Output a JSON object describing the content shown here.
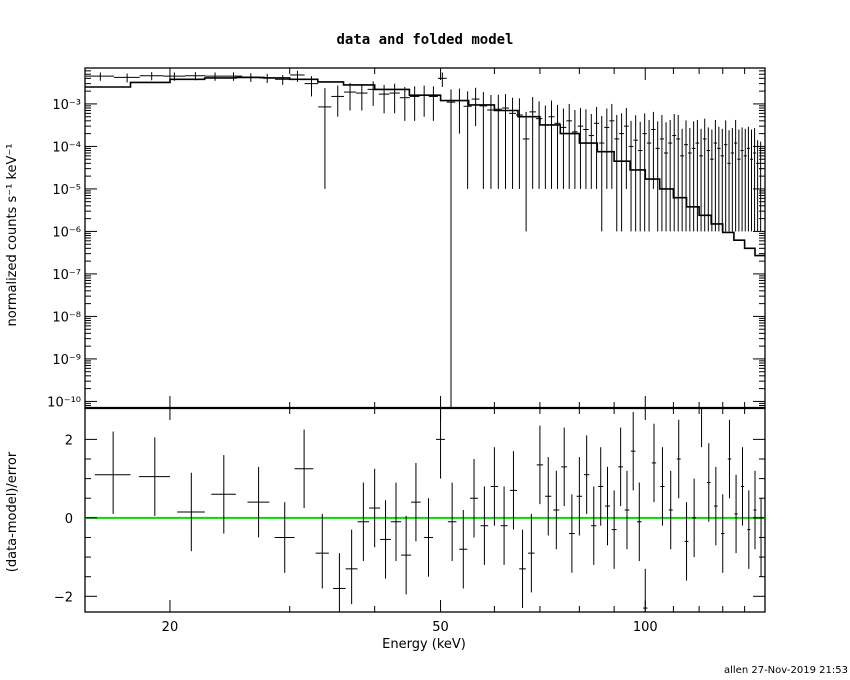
{
  "chart_data": [
    {
      "type": "scatter",
      "panel": "top",
      "title": "data and folded model",
      "xlabel": "",
      "ylabel": "normalized counts s⁻¹ keV⁻¹",
      "xscale": "log",
      "yscale": "log",
      "xlim": [
        15,
        150
      ],
      "ylim": [
        7e-11,
        0.007
      ],
      "xticks": [
        20,
        50,
        100
      ],
      "yticks": [
        "10⁻³",
        "10⁻⁴",
        "10⁻⁵",
        "10⁻⁶",
        "10⁻⁷",
        "10⁻⁸",
        "10⁻⁹",
        "10⁻¹⁰"
      ],
      "series": [
        {
          "role": "data",
          "color": "#000000",
          "x": [
            15.8,
            17.3,
            18.8,
            20.3,
            21.8,
            23.3,
            24.8,
            26.3,
            27.8,
            29.3,
            30.8,
            32.3,
            33.8,
            35.3,
            36.8,
            38.3,
            39.8,
            41.3,
            42.8,
            44.3,
            45.8,
            47.3,
            48.8,
            50.3,
            51.8,
            53.3,
            54.8,
            56.3,
            57.8,
            59.3,
            60.8,
            62.3,
            63.8,
            65.3,
            66.8,
            68.3,
            69.8,
            71.3,
            72.8,
            74.3,
            75.8,
            77.3,
            78.8,
            80.3,
            81.8,
            83.3,
            84.8,
            86.3,
            87.8,
            89.3,
            90.8,
            92.3,
            93.8,
            95.3,
            96.8,
            98.3,
            99.8,
            101.3,
            102.8,
            104.3,
            105.8,
            107.3,
            108.8,
            110.3,
            111.8,
            113.3,
            114.8,
            116.3,
            117.8,
            119.3,
            120.8,
            122.3,
            123.8,
            125.3,
            126.8,
            128.3,
            129.8,
            131.3,
            132.8,
            134.3,
            135.8,
            137.3,
            138.8,
            140.3,
            141.8,
            143.3,
            144.8,
            146.3,
            147.8
          ],
          "xerr": [
            0.75,
            0.75,
            0.75,
            0.75,
            0.75,
            0.75,
            0.75,
            0.75,
            0.75,
            0.75,
            0.75,
            0.75,
            0.75,
            0.75,
            0.75,
            0.75,
            0.75,
            0.75,
            0.75,
            0.75,
            0.75,
            0.75,
            0.75,
            0.75,
            0.75,
            0.75,
            0.75,
            0.75,
            0.75,
            0.75,
            0.75,
            0.75,
            0.75,
            0.75,
            0.75,
            0.75,
            0.75,
            0.75,
            0.75,
            0.75,
            0.75,
            0.75,
            0.75,
            0.75,
            0.75,
            0.75,
            0.75,
            0.75,
            0.75,
            0.75,
            0.75,
            0.75,
            0.75,
            0.75,
            0.75,
            0.75,
            0.75,
            0.75,
            0.75,
            0.75,
            0.75,
            0.75,
            0.75,
            0.75,
            0.75,
            0.75,
            0.75,
            0.75,
            0.75,
            0.75,
            0.75,
            0.75,
            0.75,
            0.75,
            0.75,
            0.75,
            0.75,
            0.75,
            0.75,
            0.75,
            0.75,
            0.75,
            0.75,
            0.75,
            0.75,
            0.75,
            0.75,
            0.75,
            0.75
          ],
          "y": [
            0.0045,
            0.0042,
            0.0046,
            0.0045,
            0.0046,
            0.0045,
            0.0045,
            0.0043,
            0.0041,
            0.0038,
            0.0048,
            0.003,
            0.00085,
            0.0015,
            0.0019,
            0.0018,
            0.0022,
            0.0017,
            0.0018,
            0.0014,
            0.0015,
            0.0016,
            0.0015,
            0.004,
            0.0011,
            0.0012,
            0.00088,
            0.0013,
            0.0009,
            0.00072,
            0.00075,
            0.0008,
            0.0006,
            0.00055,
            0.00015,
            0.00065,
            0.00045,
            0.00032,
            0.0005,
            0.00035,
            0.00028,
            0.0004,
            0.00022,
            0.0003,
            0.00025,
            0.00018,
            0.00035,
            0.00012,
            0.00028,
            0.0004,
            0.00015,
            0.0002,
            0.0003,
            0.0001,
            0.00014,
            8e-05,
            0.0002,
            0.00012,
            0.00025,
            9e-05,
            0.00015,
            7e-05,
            0.00012,
            0.00018,
            0.00015,
            6e-05,
            0.00011,
            7e-05,
            9e-05,
            0.00012,
            6e-05,
            0.00015,
            8e-05,
            5e-05,
            0.00012,
            9e-05,
            6e-05,
            0.00011,
            4e-05,
            7e-05,
            0.00012,
            5e-05,
            8e-05,
            6e-05,
            9e-05,
            5e-05,
            7e-05,
            4e-05,
            3e-05
          ],
          "yerr_low": [
            0.001,
            0.001,
            0.001,
            0.001,
            0.001,
            0.001,
            0.001,
            0.001,
            0.001,
            0.001,
            0.0015,
            0.0015,
            0.00084,
            0.001,
            0.0012,
            0.0011,
            0.0013,
            0.0011,
            0.0012,
            0.001,
            0.0011,
            0.0011,
            0.0011,
            0.0015,
            0.0011,
            0.001,
            0.00087,
            0.001,
            0.00089,
            0.00071,
            0.00074,
            0.00079,
            0.00059,
            0.00054,
            0.000149,
            0.00064,
            0.00044,
            0.00031,
            0.00049,
            0.00034,
            0.00027,
            0.00039,
            0.00021,
            0.00029,
            0.00024,
            0.00017,
            0.00034,
            0.000119,
            0.00027,
            0.00039,
            0.000149,
            0.000199,
            0.00029,
            9.9e-05,
            0.000139,
            7.9e-05,
            0.000199,
            0.000119,
            0.00024,
            8.9e-05,
            0.000149,
            6.9e-05,
            0.000119,
            0.000179,
            0.000149,
            5.9e-05,
            0.000109,
            6.9e-05,
            8.9e-05,
            0.000119,
            5.9e-05,
            0.000149,
            7.9e-05,
            4.9e-05,
            0.000119,
            8.9e-05,
            5.9e-05,
            0.000109,
            3.9e-05,
            6.9e-05,
            0.000119,
            4.9e-05,
            7.9e-05,
            5.9e-05,
            8.9e-05,
            4.9e-05,
            6.9e-05,
            3.9e-05,
            2.9e-05
          ],
          "yerr_high": [
            0.001,
            0.001,
            0.001,
            0.001,
            0.001,
            0.001,
            0.001,
            0.001,
            0.001,
            0.001,
            0.0012,
            0.0015,
            0.0015,
            0.0012,
            0.0012,
            0.0011,
            0.0012,
            0.0011,
            0.0012,
            0.0011,
            0.0011,
            0.0011,
            0.0011,
            0.0015,
            0.0011,
            0.0011,
            0.0011,
            0.0011,
            0.001,
            0.0009,
            0.0009,
            0.0009,
            0.0008,
            0.0008,
            0.0005,
            0.0008,
            0.0007,
            0.0006,
            0.0007,
            0.0006,
            0.0005,
            0.0006,
            0.0005,
            0.0005,
            0.0005,
            0.0004,
            0.0005,
            0.0004,
            0.0005,
            0.0006,
            0.0004,
            0.0004,
            0.0005,
            0.0003,
            0.0004,
            0.0003,
            0.0004,
            0.0003,
            0.0004,
            0.0003,
            0.0004,
            0.0003,
            0.0003,
            0.0004,
            0.0004,
            0.0002,
            0.0003,
            0.0002,
            0.0003,
            0.0003,
            0.0002,
            0.0003,
            0.0002,
            0.0002,
            0.0003,
            0.0002,
            0.0002,
            0.0003,
            0.0002,
            0.0002,
            0.0003,
            0.0002,
            0.0002,
            0.0002,
            0.0002,
            0.0002,
            0.0002,
            0.0001,
            0.0001
          ]
        },
        {
          "role": "model",
          "color": "#000000",
          "x": [
            15,
            17.5,
            20,
            22.5,
            25,
            27.5,
            30,
            33,
            36,
            40,
            45,
            50,
            55,
            60,
            65,
            70,
            75,
            80,
            85,
            90,
            95,
            100,
            105,
            110,
            115,
            120,
            125,
            130,
            135,
            140,
            145,
            150
          ],
          "y": [
            0.0025,
            0.0032,
            0.0038,
            0.0041,
            0.0042,
            0.0041,
            0.0038,
            0.0033,
            0.0028,
            0.0022,
            0.0016,
            0.0012,
            0.00095,
            0.0007,
            0.0005,
            0.00032,
            0.0002,
            0.00012,
            7.5e-05,
            4.5e-05,
            2.8e-05,
            1.7e-05,
            1e-05,
            6.2e-06,
            3.8e-06,
            2.4e-06,
            1.5e-06,
            9.5e-07,
            6.2e-07,
            4e-07,
            2.7e-07,
            1.8e-07
          ]
        }
      ]
    },
    {
      "type": "scatter",
      "panel": "bottom",
      "xlabel": "Energy (keV)",
      "ylabel": "(data-model)/error",
      "xscale": "log",
      "xlim": [
        15,
        150
      ],
      "ylim": [
        -2.4,
        2.8
      ],
      "xticks": [
        20,
        50,
        100
      ],
      "yticks": [
        2,
        0,
        -2
      ],
      "zero_line": {
        "y": 0,
        "color": "#00dd00"
      },
      "series": [
        {
          "role": "residuals",
          "color": "#000000",
          "points": [
            [
              16.5,
              1.1,
              1.1,
              1.0
            ],
            [
              19,
              1.05,
              1.0,
              1.0
            ],
            [
              21.5,
              0.15,
              1.0,
              1.0
            ],
            [
              24,
              0.6,
              1.0,
              1.0
            ],
            [
              27,
              0.4,
              0.9,
              0.9
            ],
            [
              29.5,
              -0.5,
              0.9,
              0.9
            ],
            [
              31.5,
              1.25,
              1.0,
              1.0
            ],
            [
              33.5,
              -0.9,
              1.0,
              0.9
            ],
            [
              35.5,
              -1.8,
              0.9,
              0.9
            ],
            [
              37,
              -1.3,
              1.0,
              0.9
            ],
            [
              38.5,
              -0.1,
              1.0,
              1.0
            ],
            [
              40,
              0.25,
              1.0,
              1.0
            ],
            [
              41.5,
              -0.55,
              1.0,
              1.0
            ],
            [
              43,
              -0.1,
              1.0,
              1.0
            ],
            [
              44.5,
              -0.95,
              1.0,
              1.0
            ],
            [
              46,
              0.4,
              1.0,
              1.0
            ],
            [
              48,
              -0.5,
              1.0,
              1.0
            ],
            [
              50,
              2.0,
              1.0,
              1.0
            ],
            [
              52,
              -0.1,
              1.0,
              1.0
            ],
            [
              54,
              -0.8,
              1.0,
              1.0
            ],
            [
              56,
              0.5,
              1.0,
              1.0
            ],
            [
              58,
              -0.2,
              1.0,
              1.0
            ],
            [
              60,
              0.8,
              1.0,
              1.0
            ],
            [
              62,
              -0.2,
              1.0,
              1.0
            ],
            [
              64,
              0.7,
              1.0,
              1.0
            ],
            [
              66,
              -1.3,
              1.0,
              1.0
            ],
            [
              68,
              -0.9,
              1.0,
              1.0
            ],
            [
              70,
              1.35,
              1.0,
              1.0
            ],
            [
              72,
              0.55,
              1.0,
              1.0
            ],
            [
              74,
              0.2,
              1.0,
              1.0
            ],
            [
              76,
              1.3,
              1.0,
              1.0
            ],
            [
              78,
              -0.4,
              1.0,
              1.0
            ],
            [
              80,
              0.55,
              1.0,
              1.0
            ],
            [
              82,
              1.1,
              1.0,
              1.0
            ],
            [
              84,
              -0.2,
              1.0,
              1.0
            ],
            [
              86,
              0.8,
              1.0,
              1.0
            ],
            [
              88,
              0.3,
              1.0,
              1.0
            ],
            [
              90,
              -0.3,
              1.0,
              1.0
            ],
            [
              92,
              1.3,
              1.0,
              1.0
            ],
            [
              94,
              0.2,
              1.0,
              1.0
            ],
            [
              96,
              1.7,
              1.0,
              1.0
            ],
            [
              98,
              -0.1,
              1.0,
              1.0
            ],
            [
              100,
              -2.3,
              1.0,
              1.0
            ],
            [
              103,
              1.4,
              1.0,
              1.0
            ],
            [
              106,
              0.8,
              1.0,
              1.0
            ],
            [
              109,
              0.2,
              1.0,
              1.0
            ],
            [
              112,
              1.5,
              1.0,
              1.0
            ],
            [
              115,
              -0.6,
              1.0,
              1.0
            ],
            [
              118,
              0.0,
              1.0,
              1.0
            ],
            [
              121,
              2.8,
              1.0,
              1.0
            ],
            [
              124,
              0.9,
              1.0,
              1.0
            ],
            [
              127,
              0.3,
              1.0,
              1.0
            ],
            [
              130,
              -0.4,
              1.0,
              1.0
            ],
            [
              133,
              1.5,
              1.0,
              1.0
            ],
            [
              136,
              0.1,
              1.0,
              1.0
            ],
            [
              139,
              0.8,
              1.0,
              1.0
            ],
            [
              142,
              -0.3,
              1.0,
              1.0
            ],
            [
              145,
              0.2,
              1.0,
              1.0
            ],
            [
              148,
              -0.5,
              1.0,
              1.0
            ]
          ]
        }
      ]
    }
  ],
  "footer": "allen 27-Nov-2019 21:53"
}
